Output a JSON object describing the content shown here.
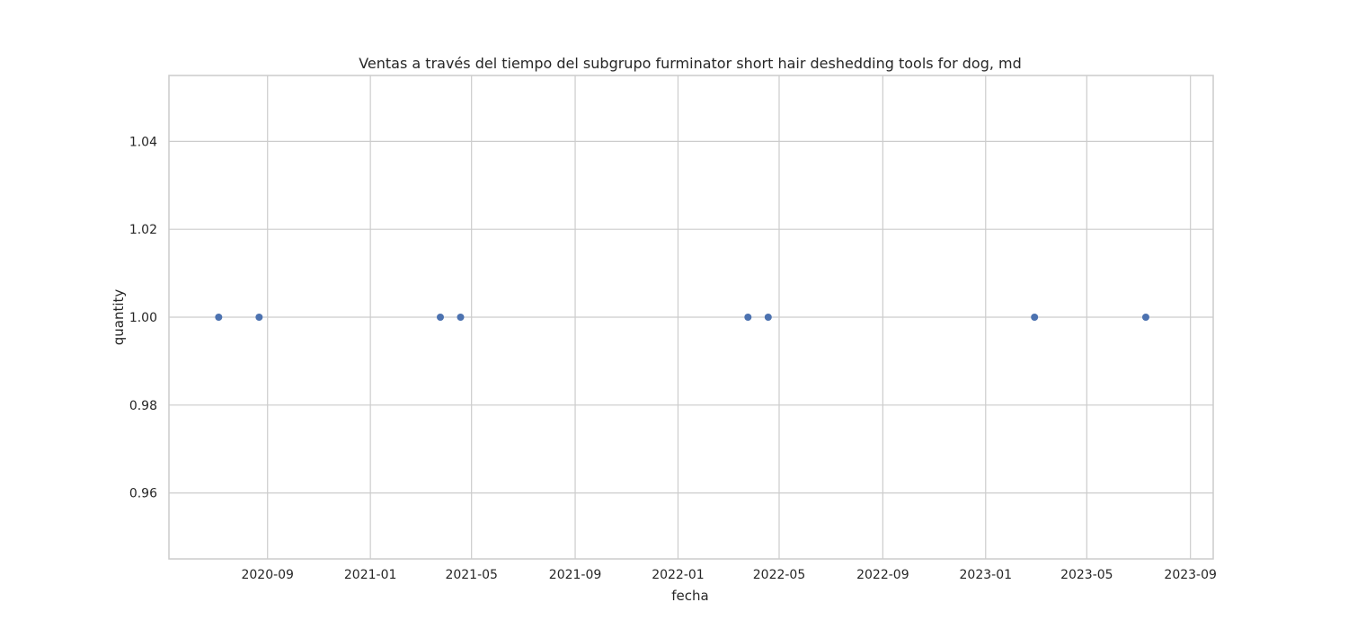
{
  "chart_data": {
    "type": "scatter",
    "title": "Ventas a través del tiempo del subgrupo furminator short hair deshedding tools for dog, md",
    "xlabel": "fecha",
    "ylabel": "quantity",
    "x_axis_type": "date",
    "xlim": [
      "2020-05-07",
      "2023-09-28"
    ],
    "ylim": [
      0.945,
      1.055
    ],
    "x_ticks": [
      "2020-09-01",
      "2021-01-01",
      "2021-05-01",
      "2021-09-01",
      "2022-01-01",
      "2022-05-01",
      "2022-09-01",
      "2023-01-01",
      "2023-05-01",
      "2023-09-01"
    ],
    "x_tick_labels": [
      "2020-09",
      "2021-01",
      "2021-05",
      "2021-09",
      "2022-01",
      "2022-05",
      "2022-09",
      "2023-01",
      "2023-05",
      "2023-09"
    ],
    "y_ticks": [
      0.96,
      0.98,
      1.0,
      1.02,
      1.04
    ],
    "y_tick_labels": [
      "0.96",
      "0.98",
      "1.00",
      "1.02",
      "1.04"
    ],
    "grid": true,
    "point_color": "#4c72b0",
    "points": [
      {
        "x": "2020-07-05",
        "y": 1.0
      },
      {
        "x": "2020-08-22",
        "y": 1.0
      },
      {
        "x": "2021-03-25",
        "y": 1.0
      },
      {
        "x": "2021-04-18",
        "y": 1.0
      },
      {
        "x": "2022-03-25",
        "y": 1.0
      },
      {
        "x": "2022-04-18",
        "y": 1.0
      },
      {
        "x": "2023-02-28",
        "y": 1.0
      },
      {
        "x": "2023-07-10",
        "y": 1.0
      }
    ]
  }
}
